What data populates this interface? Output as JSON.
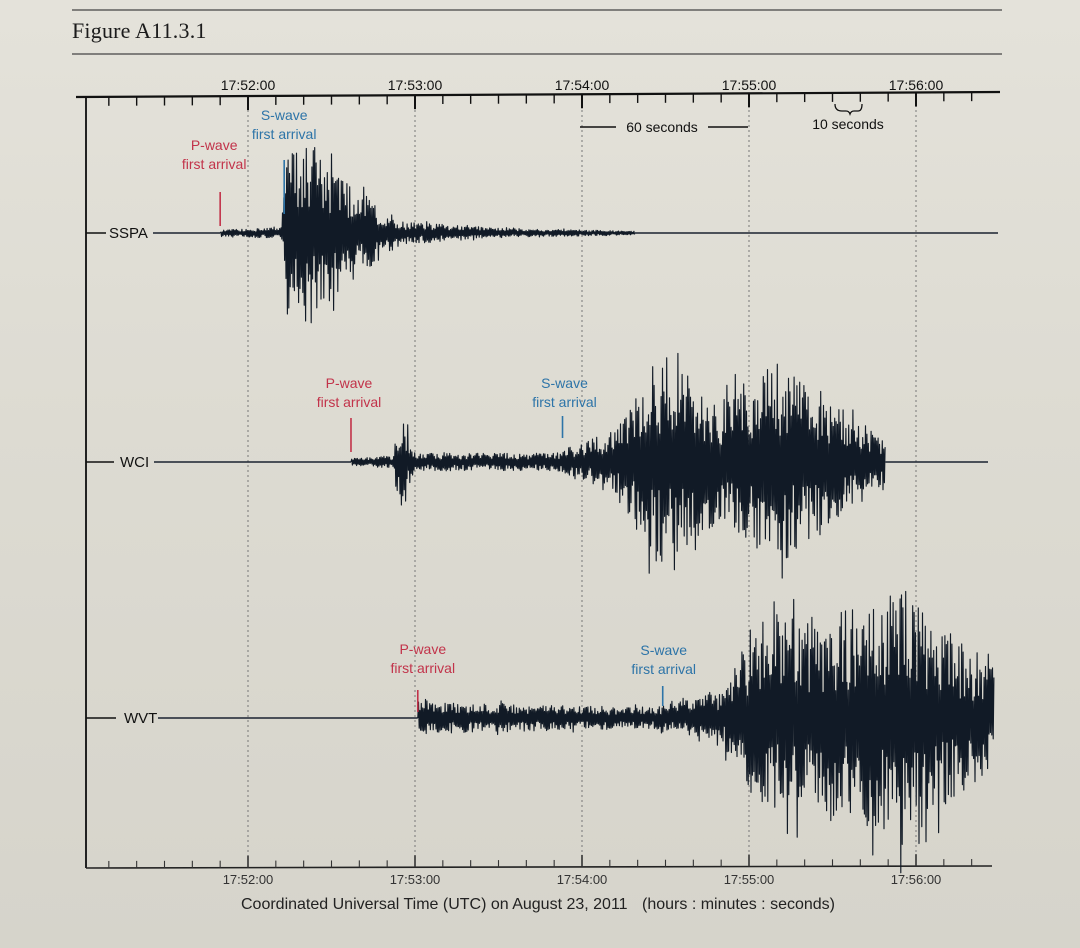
{
  "figure_label": "Figure A11.3.1",
  "chart_data": {
    "type": "line",
    "title": "",
    "xlabel": "Coordinated Universal Time (UTC) on August 23, 2011",
    "xlabel_units": "(hours : minutes : seconds)",
    "ylabel": "",
    "x_ticks": [
      "17:52:00",
      "17:53:00",
      "17:54:00",
      "17:55:00",
      "17:56:00"
    ],
    "x_ticks_bottom": [
      "17:52:00",
      "17:53:00",
      "17:54:00",
      "17:55:00",
      "17:56:00"
    ],
    "xlim": [
      "17:51:00",
      "17:56:30"
    ],
    "grid": "vertical dotted lines at each minute",
    "scale_notes": {
      "sixty": "60 seconds",
      "ten": "10 seconds"
    },
    "series": [
      {
        "name": "SSPA",
        "p_wave_label": [
          "P-wave",
          "first arrival"
        ],
        "s_wave_label": [
          "S-wave",
          "first arrival"
        ],
        "p_wave_first_arrival": "17:51:50",
        "s_wave_first_arrival": "17:52:13",
        "signal_end": "17:54:19",
        "envelope": [
          {
            "t": "17:51:50",
            "amp": 0.03
          },
          {
            "t": "17:52:12",
            "amp": 0.06
          },
          {
            "t": "17:52:14",
            "amp": 0.85
          },
          {
            "t": "17:52:22",
            "amp": 1.0
          },
          {
            "t": "17:52:35",
            "amp": 0.55
          },
          {
            "t": "17:52:55",
            "amp": 0.12
          },
          {
            "t": "17:53:30",
            "amp": 0.05
          },
          {
            "t": "17:54:19",
            "amp": 0.02
          }
        ]
      },
      {
        "name": "WCI",
        "p_wave_label": [
          "P-wave",
          "first arrival"
        ],
        "s_wave_label": [
          "S-wave",
          "first arrival"
        ],
        "p_wave_first_arrival": "17:52:37",
        "s_wave_first_arrival": "17:53:53",
        "signal_end": "17:55:49",
        "envelope": [
          {
            "t": "17:52:37",
            "amp": 0.03
          },
          {
            "t": "17:52:52",
            "amp": 0.06
          },
          {
            "t": "17:52:55",
            "amp": 0.5
          },
          {
            "t": "17:53:00",
            "amp": 0.08
          },
          {
            "t": "17:53:50",
            "amp": 0.08
          },
          {
            "t": "17:54:12",
            "amp": 0.3
          },
          {
            "t": "17:54:26",
            "amp": 1.0
          },
          {
            "t": "17:54:50",
            "amp": 0.55
          },
          {
            "t": "17:55:10",
            "amp": 0.95
          },
          {
            "t": "17:55:35",
            "amp": 0.45
          },
          {
            "t": "17:55:49",
            "amp": 0.2
          }
        ]
      },
      {
        "name": "WVT",
        "p_wave_label": [
          "P-wave",
          "first arrival"
        ],
        "s_wave_label": [
          "S-wave",
          "first arrival"
        ],
        "p_wave_first_arrival": "17:53:01",
        "s_wave_first_arrival": "17:54:29",
        "signal_end": "17:56:28",
        "envelope": [
          {
            "t": "17:53:01",
            "amp": 0.1
          },
          {
            "t": "17:53:03",
            "amp": 0.12
          },
          {
            "t": "17:54:25",
            "amp": 0.08
          },
          {
            "t": "17:54:50",
            "amp": 0.2
          },
          {
            "t": "17:55:05",
            "amp": 0.75
          },
          {
            "t": "17:55:35",
            "amp": 0.8
          },
          {
            "t": "17:55:55",
            "amp": 1.0
          },
          {
            "t": "17:56:15",
            "amp": 0.6
          },
          {
            "t": "17:56:28",
            "amp": 0.4
          }
        ]
      }
    ]
  }
}
